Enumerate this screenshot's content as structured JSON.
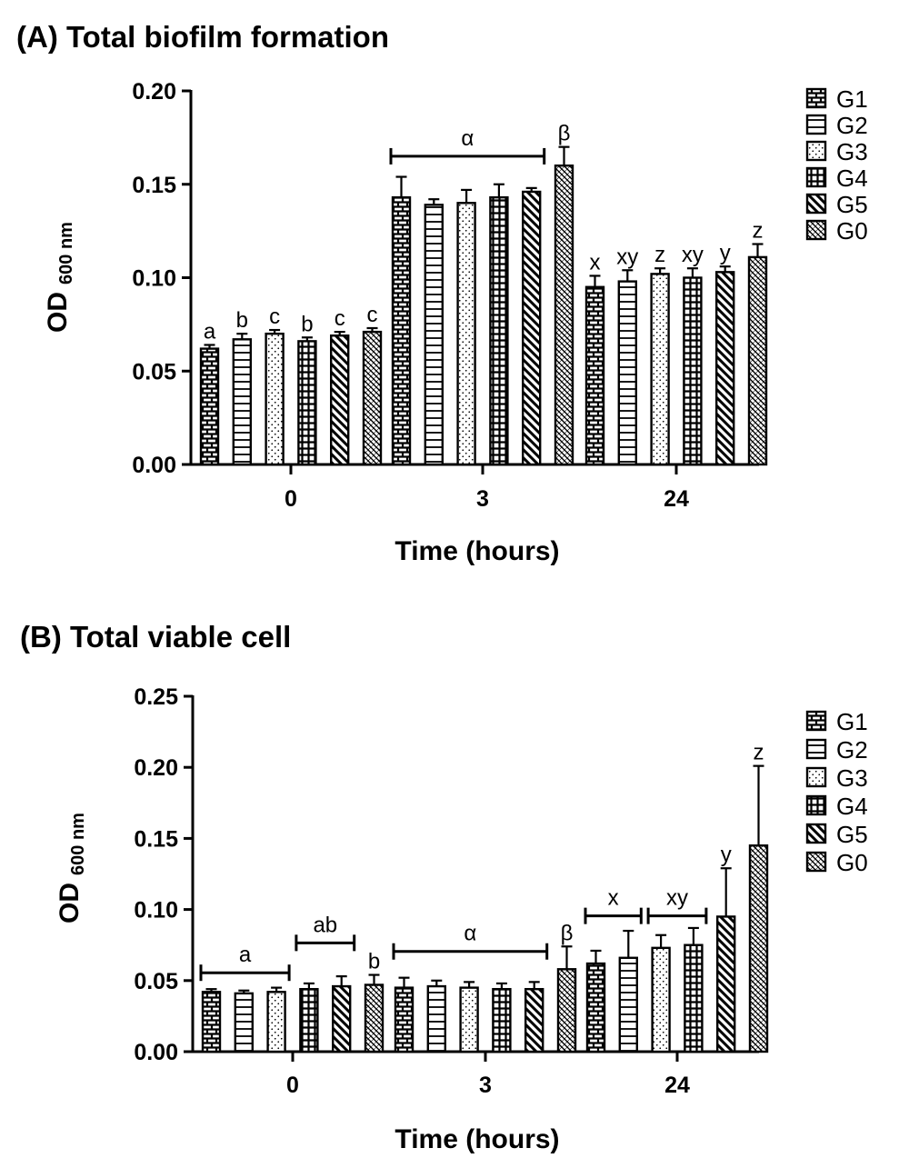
{
  "chart_data": [
    {
      "type": "bar",
      "title": "(A) Total biofilm formation",
      "xlabel": "Time (hours)",
      "ylabel_main": "OD",
      "ylabel_sub": "600 nm",
      "ylim": [
        0,
        0.2
      ],
      "yticks": [
        "0.00",
        "0.05",
        "0.10",
        "0.15",
        "0.20"
      ],
      "categories": [
        "0",
        "3",
        "24"
      ],
      "legend": [
        "G1",
        "G2",
        "G3",
        "G4",
        "G5",
        "G0"
      ],
      "legend_position": "right",
      "series": [
        {
          "name": "G1",
          "values": [
            0.062,
            0.143,
            0.095
          ],
          "errors": [
            0.002,
            0.011,
            0.006
          ]
        },
        {
          "name": "G2",
          "values": [
            0.067,
            0.139,
            0.098
          ],
          "errors": [
            0.003,
            0.003,
            0.006
          ]
        },
        {
          "name": "G3",
          "values": [
            0.07,
            0.14,
            0.102
          ],
          "errors": [
            0.002,
            0.007,
            0.003
          ]
        },
        {
          "name": "G4",
          "values": [
            0.066,
            0.143,
            0.1
          ],
          "errors": [
            0.002,
            0.007,
            0.005
          ]
        },
        {
          "name": "G5",
          "values": [
            0.069,
            0.146,
            0.103
          ],
          "errors": [
            0.002,
            0.002,
            0.003
          ]
        },
        {
          "name": "G0",
          "values": [
            0.071,
            0.16,
            0.111
          ],
          "errors": [
            0.002,
            0.01,
            0.007
          ]
        }
      ],
      "annotations": [
        {
          "text": "a",
          "group": 0,
          "bars": [
            0
          ]
        },
        {
          "text": "b",
          "group": 0,
          "bars": [
            1
          ]
        },
        {
          "text": "c",
          "group": 0,
          "bars": [
            2
          ]
        },
        {
          "text": "b",
          "group": 0,
          "bars": [
            3
          ]
        },
        {
          "text": "c",
          "group": 0,
          "bars": [
            4
          ]
        },
        {
          "text": "c",
          "group": 0,
          "bars": [
            5
          ]
        },
        {
          "text": "α",
          "group": 1,
          "bars": [
            0,
            4
          ],
          "bracket": true,
          "y": 0.165
        },
        {
          "text": "β",
          "group": 1,
          "bars": [
            5
          ]
        },
        {
          "text": "x",
          "group": 2,
          "bars": [
            0
          ]
        },
        {
          "text": "xy",
          "group": 2,
          "bars": [
            1
          ]
        },
        {
          "text": "z",
          "group": 2,
          "bars": [
            2
          ]
        },
        {
          "text": "xy",
          "group": 2,
          "bars": [
            3
          ]
        },
        {
          "text": "y",
          "group": 2,
          "bars": [
            4
          ]
        },
        {
          "text": "z",
          "group": 2,
          "bars": [
            5
          ]
        }
      ]
    },
    {
      "type": "bar",
      "title": "(B) Total viable cell",
      "xlabel": "Time (hours)",
      "ylabel_main": "OD",
      "ylabel_sub": "600 nm",
      "ylim": [
        0,
        0.25
      ],
      "yticks": [
        "0.00",
        "0.05",
        "0.10",
        "0.15",
        "0.20",
        "0.25"
      ],
      "categories": [
        "0",
        "3",
        "24"
      ],
      "legend": [
        "G1",
        "G2",
        "G3",
        "G4",
        "G5",
        "G0"
      ],
      "legend_position": "right",
      "series": [
        {
          "name": "G1",
          "values": [
            0.042,
            0.045,
            0.062
          ],
          "errors": [
            0.002,
            0.007,
            0.009
          ]
        },
        {
          "name": "G2",
          "values": [
            0.041,
            0.046,
            0.066
          ],
          "errors": [
            0.002,
            0.004,
            0.019
          ]
        },
        {
          "name": "G3",
          "values": [
            0.042,
            0.045,
            0.073
          ],
          "errors": [
            0.003,
            0.004,
            0.009
          ]
        },
        {
          "name": "G4",
          "values": [
            0.044,
            0.044,
            0.075
          ],
          "errors": [
            0.004,
            0.004,
            0.012
          ]
        },
        {
          "name": "G5",
          "values": [
            0.046,
            0.044,
            0.095
          ],
          "errors": [
            0.007,
            0.005,
            0.034
          ]
        },
        {
          "name": "G0",
          "values": [
            0.047,
            0.058,
            0.145
          ],
          "errors": [
            0.007,
            0.016,
            0.056
          ]
        }
      ],
      "annotations": [
        {
          "text": "a",
          "group": 0,
          "bars": [
            0,
            2
          ],
          "bracket": true,
          "y": 0.0555
        },
        {
          "text": "ab",
          "group": 0,
          "bars": [
            3,
            4
          ],
          "bracket": true,
          "y": 0.0765
        },
        {
          "text": "b",
          "group": 0,
          "bars": [
            5
          ]
        },
        {
          "text": "α",
          "group": 1,
          "bars": [
            0,
            4
          ],
          "bracket": true,
          "y": 0.0705
        },
        {
          "text": "β",
          "group": 1,
          "bars": [
            5
          ]
        },
        {
          "text": "x",
          "group": 2,
          "bars": [
            0,
            1
          ],
          "bracket": true,
          "y": 0.0955
        },
        {
          "text": "xy",
          "group": 2,
          "bars": [
            2,
            3
          ],
          "bracket": true,
          "y": 0.0955
        },
        {
          "text": "y",
          "group": 2,
          "bars": [
            4
          ]
        },
        {
          "text": "z",
          "group": 2,
          "bars": [
            5
          ]
        }
      ]
    }
  ]
}
